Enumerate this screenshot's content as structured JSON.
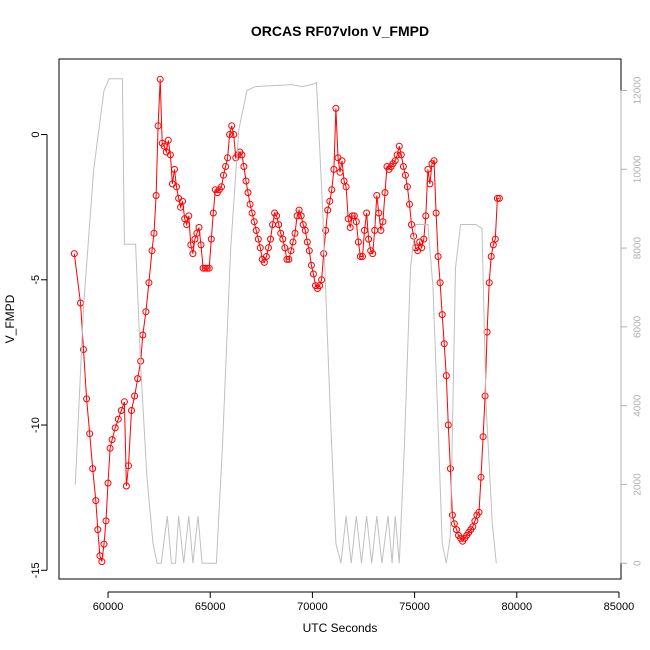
{
  "chart_data": {
    "type": "line",
    "title": "ORCAS RF07vlon V_FMPD",
    "xlabel": "UTC Seconds",
    "ylabel": "V_FMPD",
    "xlim": [
      57600,
      85100
    ],
    "ylim": [
      -15.3,
      2.6
    ],
    "y2lim": [
      -400,
      12800
    ],
    "x_ticks": [
      60000,
      65000,
      70000,
      75000,
      80000,
      85000
    ],
    "y_ticks": [
      -15,
      -10,
      -5,
      0
    ],
    "y2_ticks": [
      0,
      2000,
      4000,
      6000,
      8000,
      10000,
      12000
    ],
    "grid": false,
    "series": [
      {
        "color": "#ff0000",
        "marker": "open-circle",
        "axis": "left",
        "points": [
          [
            58350,
            -4.1
          ],
          [
            58650,
            -5.8
          ],
          [
            58800,
            -7.4
          ],
          [
            58950,
            -9.1
          ],
          [
            59100,
            -10.3
          ],
          [
            59250,
            -11.5
          ],
          [
            59400,
            -12.6
          ],
          [
            59500,
            -13.6
          ],
          [
            59600,
            -14.5
          ],
          [
            59700,
            -14.7
          ],
          [
            59800,
            -14.1
          ],
          [
            59900,
            -13.3
          ],
          [
            60000,
            -12.0
          ],
          [
            60100,
            -10.8
          ],
          [
            60200,
            -10.5
          ],
          [
            60350,
            -10.1
          ],
          [
            60500,
            -9.8
          ],
          [
            60650,
            -9.5
          ],
          [
            60800,
            -9.2
          ],
          [
            60900,
            -12.1
          ],
          [
            61000,
            -11.4
          ],
          [
            61150,
            -9.5
          ],
          [
            61300,
            -9.0
          ],
          [
            61450,
            -8.4
          ],
          [
            61600,
            -7.8
          ],
          [
            61700,
            -6.9
          ],
          [
            61850,
            -6.1
          ],
          [
            62000,
            -5.1
          ],
          [
            62150,
            -4.0
          ],
          [
            62250,
            -3.4
          ],
          [
            62350,
            -2.1
          ],
          [
            62450,
            0.3
          ],
          [
            62550,
            1.9
          ],
          [
            62650,
            -0.3
          ],
          [
            62750,
            -0.4
          ],
          [
            62850,
            -0.6
          ],
          [
            62950,
            -0.2
          ],
          [
            63050,
            -0.7
          ],
          [
            63150,
            -1.7
          ],
          [
            63250,
            -1.2
          ],
          [
            63350,
            -1.8
          ],
          [
            63450,
            -2.2
          ],
          [
            63550,
            -2.5
          ],
          [
            63650,
            -2.3
          ],
          [
            63750,
            -2.9
          ],
          [
            63850,
            -3.1
          ],
          [
            63950,
            -2.8
          ],
          [
            64050,
            -3.8
          ],
          [
            64150,
            -4.1
          ],
          [
            64250,
            -3.6
          ],
          [
            64350,
            -3.4
          ],
          [
            64450,
            -3.2
          ],
          [
            64550,
            -3.8
          ],
          [
            64650,
            -4.6
          ],
          [
            64750,
            -4.6
          ],
          [
            64850,
            -4.6
          ],
          [
            64950,
            -4.6
          ],
          [
            65050,
            -3.6
          ],
          [
            65150,
            -2.7
          ],
          [
            65250,
            -1.9
          ],
          [
            65350,
            -2.0
          ],
          [
            65450,
            -1.9
          ],
          [
            65550,
            -1.8
          ],
          [
            65650,
            -1.4
          ],
          [
            65750,
            -1.1
          ],
          [
            65850,
            -0.8
          ],
          [
            65950,
            0.0
          ],
          [
            66050,
            0.3
          ],
          [
            66150,
            0.0
          ],
          [
            66250,
            -0.8
          ],
          [
            66350,
            -0.7
          ],
          [
            66450,
            -0.6
          ],
          [
            66550,
            -0.7
          ],
          [
            66650,
            -1.1
          ],
          [
            66750,
            -1.6
          ],
          [
            66850,
            -2.0
          ],
          [
            66950,
            -2.4
          ],
          [
            67050,
            -2.7
          ],
          [
            67150,
            -3.0
          ],
          [
            67250,
            -3.3
          ],
          [
            67350,
            -3.6
          ],
          [
            67450,
            -3.9
          ],
          [
            67550,
            -4.3
          ],
          [
            67650,
            -4.4
          ],
          [
            67750,
            -4.2
          ],
          [
            67850,
            -3.9
          ],
          [
            67950,
            -3.6
          ],
          [
            68050,
            -3.1
          ],
          [
            68150,
            -2.7
          ],
          [
            68250,
            -2.8
          ],
          [
            68350,
            -3.1
          ],
          [
            68450,
            -3.4
          ],
          [
            68550,
            -3.6
          ],
          [
            68650,
            -3.9
          ],
          [
            68750,
            -4.3
          ],
          [
            68850,
            -4.3
          ],
          [
            68950,
            -4.0
          ],
          [
            69050,
            -3.7
          ],
          [
            69150,
            -3.4
          ],
          [
            69250,
            -2.8
          ],
          [
            69350,
            -2.6
          ],
          [
            69450,
            -2.8
          ],
          [
            69550,
            -3.1
          ],
          [
            69650,
            -3.3
          ],
          [
            69750,
            -3.7
          ],
          [
            69850,
            -4.0
          ],
          [
            69950,
            -4.5
          ],
          [
            70050,
            -4.8
          ],
          [
            70150,
            -5.2
          ],
          [
            70250,
            -5.3
          ],
          [
            70350,
            -5.2
          ],
          [
            70450,
            -5.0
          ],
          [
            70550,
            -4.1
          ],
          [
            70650,
            -3.3
          ],
          [
            70750,
            -2.6
          ],
          [
            70850,
            -2.3
          ],
          [
            70950,
            -1.9
          ],
          [
            71050,
            -1.2
          ],
          [
            71150,
            0.9
          ],
          [
            71250,
            -0.8
          ],
          [
            71350,
            -1.3
          ],
          [
            71450,
            -0.9
          ],
          [
            71550,
            -1.6
          ],
          [
            71650,
            -1.8
          ],
          [
            71750,
            -2.9
          ],
          [
            71850,
            -3.2
          ],
          [
            71950,
            -2.8
          ],
          [
            72050,
            -2.8
          ],
          [
            72150,
            -3.0
          ],
          [
            72250,
            -3.7
          ],
          [
            72350,
            -4.2
          ],
          [
            72450,
            -4.2
          ],
          [
            72550,
            -3.3
          ],
          [
            72650,
            -2.7
          ],
          [
            72750,
            -3.6
          ],
          [
            72850,
            -4.0
          ],
          [
            72950,
            -4.1
          ],
          [
            73050,
            -3.3
          ],
          [
            73150,
            -2.1
          ],
          [
            73250,
            -2.7
          ],
          [
            73350,
            -3.3
          ],
          [
            73450,
            -3.0
          ],
          [
            73550,
            -2.0
          ],
          [
            73650,
            -1.1
          ],
          [
            73750,
            -1.2
          ],
          [
            73850,
            -1.1
          ],
          [
            73950,
            -1.0
          ],
          [
            74050,
            -0.9
          ],
          [
            74150,
            -0.7
          ],
          [
            74250,
            -0.4
          ],
          [
            74350,
            -0.7
          ],
          [
            74450,
            -1.1
          ],
          [
            74550,
            -1.4
          ],
          [
            74650,
            -1.8
          ],
          [
            74750,
            -2.4
          ],
          [
            74850,
            -3.1
          ],
          [
            74950,
            -3.5
          ],
          [
            75050,
            -3.9
          ],
          [
            75150,
            -4.0
          ],
          [
            75250,
            -3.7
          ],
          [
            75350,
            -3.9
          ],
          [
            75450,
            -3.6
          ],
          [
            75550,
            -2.8
          ],
          [
            75650,
            -1.2
          ],
          [
            75750,
            -1.7
          ],
          [
            75850,
            -1.0
          ],
          [
            75950,
            -0.9
          ],
          [
            76050,
            -2.7
          ],
          [
            76150,
            -4.2
          ],
          [
            76250,
            -5.1
          ],
          [
            76350,
            -6.2
          ],
          [
            76450,
            -7.2
          ],
          [
            76550,
            -8.3
          ],
          [
            76650,
            -10.0
          ],
          [
            76750,
            -11.5
          ],
          [
            76850,
            -13.1
          ],
          [
            76950,
            -13.4
          ],
          [
            77050,
            -13.6
          ],
          [
            77150,
            -13.8
          ],
          [
            77250,
            -13.9
          ],
          [
            77350,
            -14.0
          ],
          [
            77450,
            -13.9
          ],
          [
            77550,
            -13.8
          ],
          [
            77650,
            -13.7
          ],
          [
            77750,
            -13.6
          ],
          [
            77850,
            -13.5
          ],
          [
            77950,
            -13.3
          ],
          [
            78050,
            -13.1
          ],
          [
            78150,
            -13.0
          ],
          [
            78250,
            -11.8
          ],
          [
            78350,
            -10.4
          ],
          [
            78450,
            -9.0
          ],
          [
            78550,
            -6.8
          ],
          [
            78650,
            -5.1
          ],
          [
            78750,
            -4.2
          ],
          [
            78850,
            -3.8
          ],
          [
            78950,
            -3.6
          ],
          [
            79050,
            -2.2
          ],
          [
            79150,
            -2.2
          ]
        ]
      },
      {
        "color": "#c0c0c0",
        "marker": "none",
        "axis": "right",
        "points": [
          [
            58400,
            2000
          ],
          [
            58800,
            6500
          ],
          [
            59300,
            10000
          ],
          [
            59800,
            12000
          ],
          [
            60050,
            12300
          ],
          [
            60350,
            12300
          ],
          [
            60700,
            12300
          ],
          [
            60800,
            8100
          ],
          [
            61100,
            8100
          ],
          [
            61350,
            8100
          ],
          [
            61600,
            5000
          ],
          [
            61900,
            2200
          ],
          [
            62200,
            500
          ],
          [
            62400,
            0
          ],
          [
            62600,
            0
          ],
          [
            62900,
            1200
          ],
          [
            63100,
            0
          ],
          [
            63300,
            0
          ],
          [
            63450,
            1200
          ],
          [
            63700,
            0
          ],
          [
            63950,
            1200
          ],
          [
            64150,
            0
          ],
          [
            64400,
            1200
          ],
          [
            64600,
            0
          ],
          [
            65000,
            0
          ],
          [
            65300,
            0
          ],
          [
            65600,
            3000
          ],
          [
            66000,
            8000
          ],
          [
            66400,
            11000
          ],
          [
            66800,
            12000
          ],
          [
            67200,
            12100
          ],
          [
            69000,
            12150
          ],
          [
            69500,
            12100
          ],
          [
            69950,
            12150
          ],
          [
            70200,
            12200
          ],
          [
            70500,
            9000
          ],
          [
            70900,
            3500
          ],
          [
            71150,
            500
          ],
          [
            71400,
            0
          ],
          [
            71650,
            1200
          ],
          [
            71900,
            0
          ],
          [
            72150,
            1200
          ],
          [
            72400,
            0
          ],
          [
            72650,
            1200
          ],
          [
            72900,
            0
          ],
          [
            73150,
            1200
          ],
          [
            73400,
            0
          ],
          [
            73700,
            1200
          ],
          [
            73900,
            0
          ],
          [
            74050,
            1200
          ],
          [
            74250,
            0
          ],
          [
            74500,
            3000
          ],
          [
            74800,
            7500
          ],
          [
            75050,
            8600
          ],
          [
            75400,
            8600
          ],
          [
            75650,
            8600
          ],
          [
            75900,
            7000
          ],
          [
            76150,
            3500
          ],
          [
            76350,
            500
          ],
          [
            76550,
            0
          ],
          [
            76750,
            700
          ],
          [
            77000,
            7500
          ],
          [
            77250,
            8600
          ],
          [
            78000,
            8600
          ],
          [
            78300,
            8500
          ],
          [
            78500,
            4000
          ],
          [
            78800,
            1000
          ],
          [
            79000,
            0
          ]
        ]
      }
    ]
  }
}
